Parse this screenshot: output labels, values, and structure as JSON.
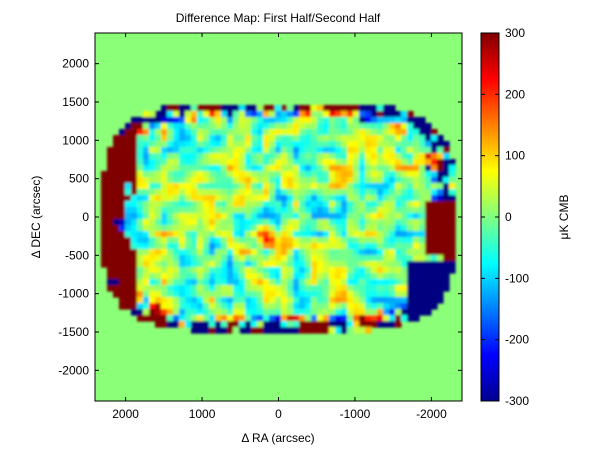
{
  "chart_data": {
    "type": "heatmap",
    "title": "Difference Map: First Half/Second Half",
    "xlabel": "Δ RA (arcsec)",
    "ylabel": "Δ DEC (arcsec)",
    "x_ticks": [
      "2000",
      "1000",
      "0",
      "-1000",
      "-2000"
    ],
    "x_tick_values": [
      2000,
      1000,
      0,
      -1000,
      -2000
    ],
    "y_ticks": [
      "2000",
      "1500",
      "1000",
      "500",
      "0",
      "-500",
      "-1000",
      "-1500",
      "-2000"
    ],
    "y_tick_values": [
      2000,
      1500,
      1000,
      500,
      0,
      -500,
      -1000,
      -1500,
      -2000
    ],
    "xlim": [
      2400,
      -2400
    ],
    "ylim": [
      -2400,
      2400
    ],
    "x_reversed": true,
    "colorbar": {
      "label": "μK CMB",
      "ticks": [
        "300",
        "200",
        "100",
        "0",
        "-100",
        "-200",
        "-300"
      ],
      "tick_values": [
        300,
        200,
        100,
        0,
        -100,
        -200,
        -300
      ],
      "range": [
        -300,
        300
      ],
      "colormap": "jet"
    },
    "features": {
      "observed_region": "ellipse centered near 0,0 spanning about ±2300 arcsec in RA and ±1500 arcsec in DEC",
      "background_value": 0,
      "edge_values": "saturated at ±300 near the edges of the observed region",
      "center_value": "noise around 0 with a positive blob near 0,-250"
    }
  }
}
